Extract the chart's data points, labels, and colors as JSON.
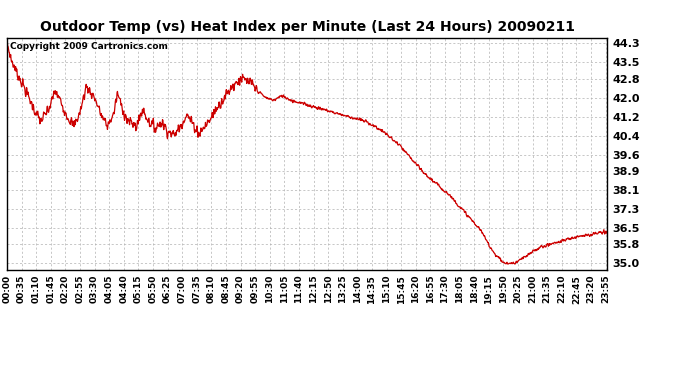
{
  "title": "Outdoor Temp (vs) Heat Index per Minute (Last 24 Hours) 20090211",
  "copyright_text": "Copyright 2009 Cartronics.com",
  "line_color": "#cc0000",
  "background_color": "#ffffff",
  "grid_color": "#b0b0b0",
  "ylim": [
    34.72,
    44.55
  ],
  "yticks": [
    35.0,
    35.8,
    36.5,
    37.3,
    38.1,
    38.9,
    39.6,
    40.4,
    41.2,
    42.0,
    42.8,
    43.5,
    44.3
  ],
  "xtick_labels": [
    "00:00",
    "00:35",
    "01:10",
    "01:45",
    "02:20",
    "02:55",
    "03:30",
    "04:05",
    "04:40",
    "05:15",
    "05:50",
    "06:25",
    "07:00",
    "07:35",
    "08:10",
    "08:45",
    "09:20",
    "09:55",
    "10:30",
    "11:05",
    "11:40",
    "12:15",
    "12:50",
    "13:25",
    "14:00",
    "14:35",
    "15:10",
    "15:45",
    "16:20",
    "16:55",
    "17:30",
    "18:05",
    "18:40",
    "19:15",
    "19:50",
    "20:25",
    "21:00",
    "21:35",
    "22:10",
    "22:45",
    "23:20",
    "23:55"
  ],
  "figwidth": 6.9,
  "figheight": 3.75,
  "dpi": 100
}
